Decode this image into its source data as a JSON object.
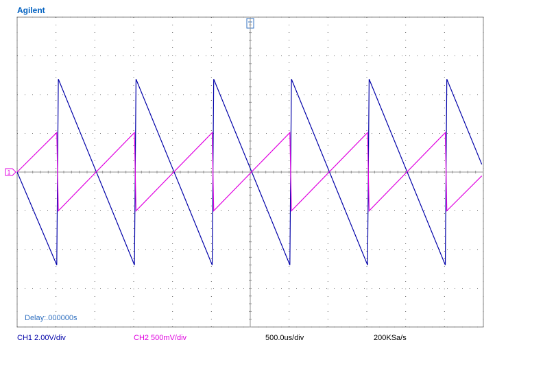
{
  "chart_data": {
    "type": "line",
    "title": "Agilent",
    "x": [
      -3,
      -2.49,
      -2.47,
      -1.49,
      -1.47,
      -0.49,
      -0.47,
      0.51,
      0.53,
      1.51,
      1.53,
      2.51,
      2.53,
      2.98
    ],
    "series": [
      {
        "name": "CH1 2.00V/div",
        "color": "#0000a8",
        "values": [
          0,
          -4.8,
          4.8,
          -4.8,
          4.8,
          -4.8,
          4.8,
          -4.8,
          4.8,
          -4.8,
          4.8,
          -4.8,
          4.8,
          0.4
        ]
      },
      {
        "name": "CH2 500mV/div",
        "color": "#e000e0",
        "axis": "y2",
        "values": [
          0,
          0.51,
          -0.5,
          0.51,
          -0.5,
          0.51,
          -0.5,
          0.51,
          -0.5,
          0.51,
          -0.5,
          0.51,
          -0.5,
          -0.05
        ]
      }
    ],
    "xlim": [
      -3,
      3
    ],
    "xticks": [
      -3,
      -2.5,
      -2,
      -1.5,
      -1,
      -0.5,
      0,
      0.5,
      1,
      1.5,
      2,
      2.5,
      3
    ],
    "ylim": [
      -8,
      8
    ],
    "yticks": [
      -8,
      -6,
      -4,
      -2,
      0,
      2,
      4,
      6,
      8
    ],
    "y2lim": [
      -2,
      2
    ],
    "grid": true,
    "ground_marker": "1",
    "annotations": [
      "Delay:.000000s",
      "500.0us/div",
      "200KSa/s"
    ]
  }
}
